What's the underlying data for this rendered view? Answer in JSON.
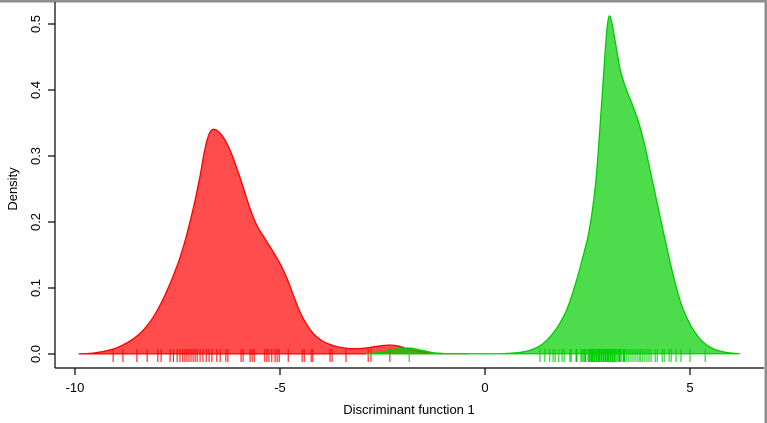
{
  "figure": {
    "background": "#FFFFFF",
    "frame_color": "#8E8E8E",
    "axis_color": "#000000",
    "text_color": "#000000",
    "xlabel": "Discriminant function 1",
    "ylabel": "Density",
    "x_ticks": [
      {
        "label": "-10",
        "value": -10
      },
      {
        "label": "-5",
        "value": -5
      },
      {
        "label": "0",
        "value": 0
      },
      {
        "label": "5",
        "value": 5
      }
    ],
    "y_ticks": [
      {
        "label": "0.0",
        "value": 0.0
      },
      {
        "label": "0.1",
        "value": 0.1
      },
      {
        "label": "0.2",
        "value": 0.2
      },
      {
        "label": "0.3",
        "value": 0.3
      },
      {
        "label": "0.4",
        "value": 0.4
      },
      {
        "label": "0.5",
        "value": 0.5
      }
    ]
  },
  "chart_data": {
    "type": "area",
    "title": "",
    "xlabel": "Discriminant function 1",
    "ylabel": "Density",
    "xlim": [
      -10.5,
      6.9
    ],
    "ylim": [
      0,
      0.53
    ],
    "grid": false,
    "legend": false,
    "description": "Two kernel density estimates with rug marks: red group centered near -6.8 (peak density 0.34, small outlier bump near -2.3), green group centered near 3.0 (peak density 0.51, small outlier bump near -1.85).",
    "series": [
      {
        "name": "group-1-red-density",
        "color": "#FF0000",
        "fill": "rgba(255,0,0,0.7)",
        "peak": {
          "x": -6.65,
          "density": 0.34
        },
        "points": [
          [
            -9.9,
            0.0002
          ],
          [
            -9.6,
            0.001
          ],
          [
            -9.3,
            0.004
          ],
          [
            -9.0,
            0.009
          ],
          [
            -8.7,
            0.018
          ],
          [
            -8.4,
            0.032
          ],
          [
            -8.1,
            0.055
          ],
          [
            -7.8,
            0.09
          ],
          [
            -7.5,
            0.135
          ],
          [
            -7.3,
            0.175
          ],
          [
            -7.1,
            0.225
          ],
          [
            -6.95,
            0.27
          ],
          [
            -6.85,
            0.305
          ],
          [
            -6.75,
            0.33
          ],
          [
            -6.65,
            0.34
          ],
          [
            -6.5,
            0.337
          ],
          [
            -6.35,
            0.325
          ],
          [
            -6.2,
            0.306
          ],
          [
            -6.0,
            0.272
          ],
          [
            -5.85,
            0.243
          ],
          [
            -5.7,
            0.215
          ],
          [
            -5.55,
            0.193
          ],
          [
            -5.4,
            0.178
          ],
          [
            -5.25,
            0.163
          ],
          [
            -5.1,
            0.148
          ],
          [
            -4.95,
            0.131
          ],
          [
            -4.8,
            0.11
          ],
          [
            -4.65,
            0.085
          ],
          [
            -4.5,
            0.062
          ],
          [
            -4.35,
            0.045
          ],
          [
            -4.2,
            0.032
          ],
          [
            -4.0,
            0.021
          ],
          [
            -3.8,
            0.015
          ],
          [
            -3.6,
            0.011
          ],
          [
            -3.4,
            0.009
          ],
          [
            -3.2,
            0.008
          ],
          [
            -3.0,
            0.0085
          ],
          [
            -2.8,
            0.01
          ],
          [
            -2.6,
            0.012
          ],
          [
            -2.45,
            0.013
          ],
          [
            -2.3,
            0.0135
          ],
          [
            -2.15,
            0.0125
          ],
          [
            -2.0,
            0.01
          ],
          [
            -1.85,
            0.007
          ],
          [
            -1.7,
            0.005
          ],
          [
            -1.5,
            0.003
          ],
          [
            -1.3,
            0.0015
          ],
          [
            -1.0,
            0.0006
          ],
          [
            -0.7,
            0.0002
          ],
          [
            -0.4,
            0.0001
          ]
        ],
        "rug": [
          -9.07,
          -8.83,
          -8.49,
          -8.24,
          -7.98,
          -7.9,
          -7.68,
          -7.6,
          -7.51,
          -7.44,
          -7.37,
          -7.32,
          -7.27,
          -7.22,
          -7.17,
          -7.12,
          -7.07,
          -7.02,
          -6.95,
          -6.88,
          -6.8,
          -6.73,
          -6.66,
          -6.54,
          -6.46,
          -6.32,
          -6.27,
          -5.95,
          -5.9,
          -5.73,
          -5.68,
          -5.63,
          -5.37,
          -5.32,
          -5.27,
          -5.2,
          -5.12,
          -5.07,
          -5.02,
          -4.8,
          -4.46,
          -4.41,
          -4.24,
          -4.2,
          -3.78,
          -3.73,
          -3.39,
          -2.85,
          -2.78,
          -2.32
        ]
      },
      {
        "name": "group-2-green-density",
        "color": "#00CD00",
        "fill": "rgba(0,205,0,0.7)",
        "peak": {
          "x": 3.0,
          "density": 0.51
        },
        "points": [
          [
            -2.9,
            0.0003
          ],
          [
            -2.7,
            0.001
          ],
          [
            -2.5,
            0.003
          ],
          [
            -2.3,
            0.006
          ],
          [
            -2.1,
            0.008
          ],
          [
            -1.95,
            0.009
          ],
          [
            -1.8,
            0.0088
          ],
          [
            -1.65,
            0.007
          ],
          [
            -1.5,
            0.005
          ],
          [
            -1.35,
            0.003
          ],
          [
            -1.2,
            0.0015
          ],
          [
            -1.0,
            0.0007
          ],
          [
            -0.7,
            0.0003
          ],
          [
            -0.3,
            0.0002
          ],
          [
            0.2,
            0.0003
          ],
          [
            0.5,
            0.0008
          ],
          [
            0.8,
            0.002
          ],
          [
            1.0,
            0.004
          ],
          [
            1.2,
            0.008
          ],
          [
            1.4,
            0.015
          ],
          [
            1.6,
            0.027
          ],
          [
            1.8,
            0.044
          ],
          [
            2.0,
            0.068
          ],
          [
            2.2,
            0.105
          ],
          [
            2.4,
            0.15
          ],
          [
            2.55,
            0.19
          ],
          [
            2.7,
            0.26
          ],
          [
            2.8,
            0.34
          ],
          [
            2.9,
            0.43
          ],
          [
            2.97,
            0.49
          ],
          [
            3.03,
            0.512
          ],
          [
            3.1,
            0.5
          ],
          [
            3.2,
            0.465
          ],
          [
            3.3,
            0.43
          ],
          [
            3.45,
            0.4
          ],
          [
            3.6,
            0.377
          ],
          [
            3.75,
            0.35
          ],
          [
            3.9,
            0.315
          ],
          [
            4.05,
            0.272
          ],
          [
            4.2,
            0.228
          ],
          [
            4.35,
            0.185
          ],
          [
            4.5,
            0.143
          ],
          [
            4.65,
            0.105
          ],
          [
            4.8,
            0.073
          ],
          [
            5.0,
            0.045
          ],
          [
            5.2,
            0.026
          ],
          [
            5.4,
            0.014
          ],
          [
            5.6,
            0.007
          ],
          [
            5.8,
            0.0035
          ],
          [
            6.0,
            0.0015
          ],
          [
            6.2,
            0.0005
          ]
        ],
        "rug": [
          -1.85,
          1.34,
          1.46,
          1.58,
          1.66,
          1.71,
          1.8,
          1.88,
          1.93,
          2.07,
          2.1,
          2.22,
          2.24,
          2.34,
          2.37,
          2.41,
          2.44,
          2.46,
          2.51,
          2.54,
          2.56,
          2.59,
          2.61,
          2.63,
          2.66,
          2.68,
          2.71,
          2.73,
          2.76,
          2.78,
          2.8,
          2.83,
          2.85,
          2.88,
          2.9,
          2.93,
          2.95,
          2.98,
          3.0,
          3.02,
          3.05,
          3.07,
          3.1,
          3.12,
          3.15,
          3.17,
          3.2,
          3.24,
          3.27,
          3.29,
          3.32,
          3.37,
          3.39,
          3.41,
          3.46,
          3.51,
          3.56,
          3.61,
          3.66,
          3.71,
          3.76,
          3.8,
          3.85,
          3.9,
          3.95,
          4.0,
          4.05,
          4.15,
          4.2,
          4.32,
          4.37,
          4.49,
          4.54,
          4.66,
          4.78,
          5.0,
          5.37
        ]
      }
    ]
  }
}
